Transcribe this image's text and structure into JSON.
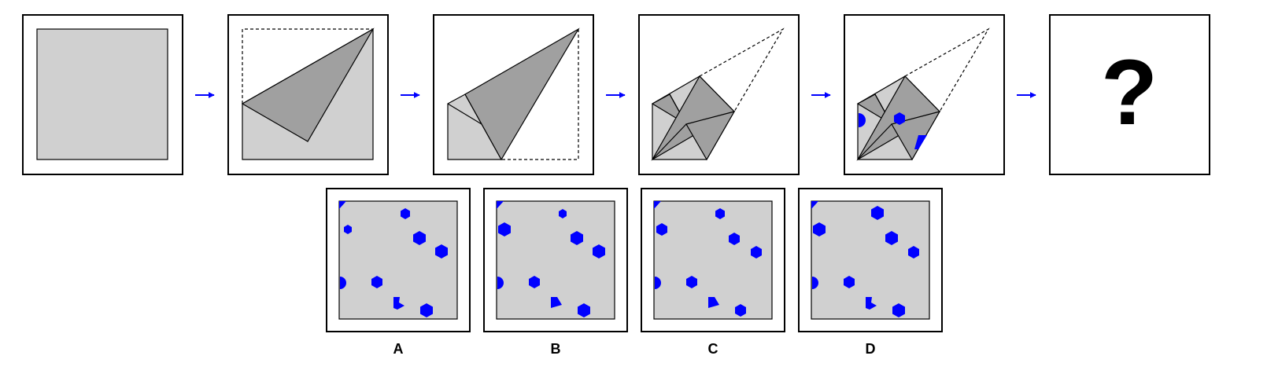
{
  "puzzle": {
    "question_mark": "?",
    "steps": [
      "unfolded-square",
      "fold-1",
      "fold-2",
      "fold-3",
      "fold-3-punched",
      "answer-placeholder"
    ]
  },
  "options": [
    {
      "label": "A"
    },
    {
      "label": "B"
    },
    {
      "label": "C"
    },
    {
      "label": "D"
    }
  ],
  "colors": {
    "paper": "#d0d0d0",
    "fold_shade": "#a0a0a0",
    "punch": "#0000ff",
    "arrow": "#0000ff",
    "frame": "#000000"
  }
}
